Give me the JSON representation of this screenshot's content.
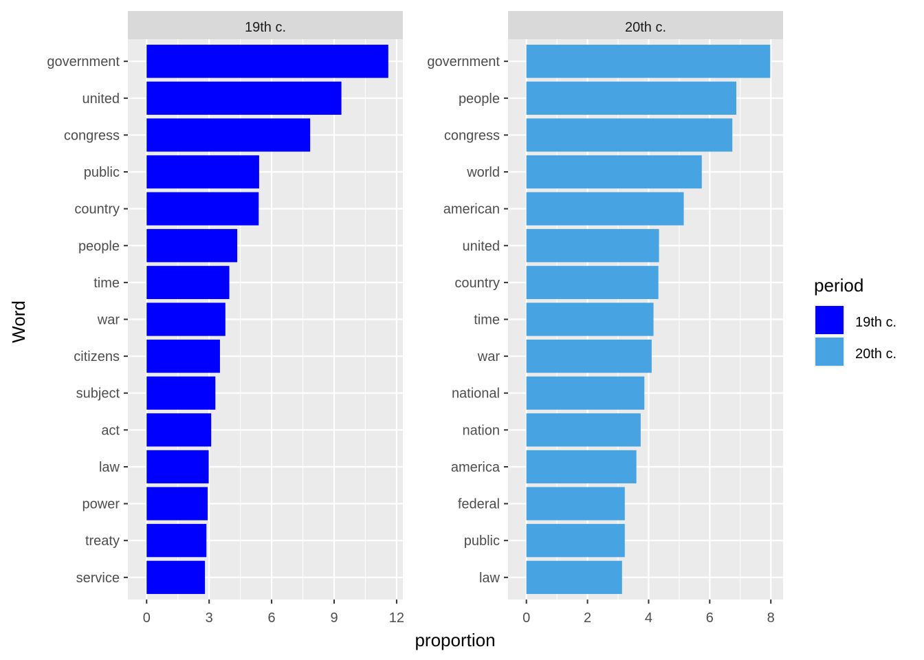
{
  "chart_data": {
    "type": "bar",
    "orientation": "horizontal",
    "xlabel": "proportion",
    "ylabel": "Word",
    "legend": {
      "title": "period",
      "placement": "right",
      "entries": [
        {
          "label": "19th c.",
          "color": "#0000FF"
        },
        {
          "label": "20th c.",
          "color": "#48A3E2"
        }
      ]
    },
    "grid": true,
    "panels": [
      {
        "strip": "19th c.",
        "color": "#0000FF",
        "xlim": [
          -0.9,
          12.3
        ],
        "xticks": [
          0,
          3,
          6,
          9,
          12
        ],
        "categories": [
          "government",
          "united",
          "congress",
          "public",
          "country",
          "people",
          "time",
          "war",
          "citizens",
          "subject",
          "act",
          "law",
          "power",
          "treaty",
          "service"
        ],
        "values": [
          11.6,
          9.35,
          7.85,
          5.4,
          5.38,
          4.35,
          3.97,
          3.78,
          3.52,
          3.3,
          3.1,
          2.98,
          2.93,
          2.87,
          2.8
        ]
      },
      {
        "strip": "20th c.",
        "color": "#48A3E2",
        "xlim": [
          -0.6,
          8.4
        ],
        "xticks": [
          0,
          2,
          4,
          6,
          8
        ],
        "categories": [
          "government",
          "people",
          "congress",
          "world",
          "american",
          "united",
          "country",
          "time",
          "war",
          "national",
          "nation",
          "america",
          "federal",
          "public",
          "law"
        ],
        "values": [
          7.98,
          6.87,
          6.74,
          5.74,
          5.15,
          4.34,
          4.32,
          4.16,
          4.1,
          3.86,
          3.74,
          3.6,
          3.22,
          3.22,
          3.13
        ]
      }
    ]
  }
}
